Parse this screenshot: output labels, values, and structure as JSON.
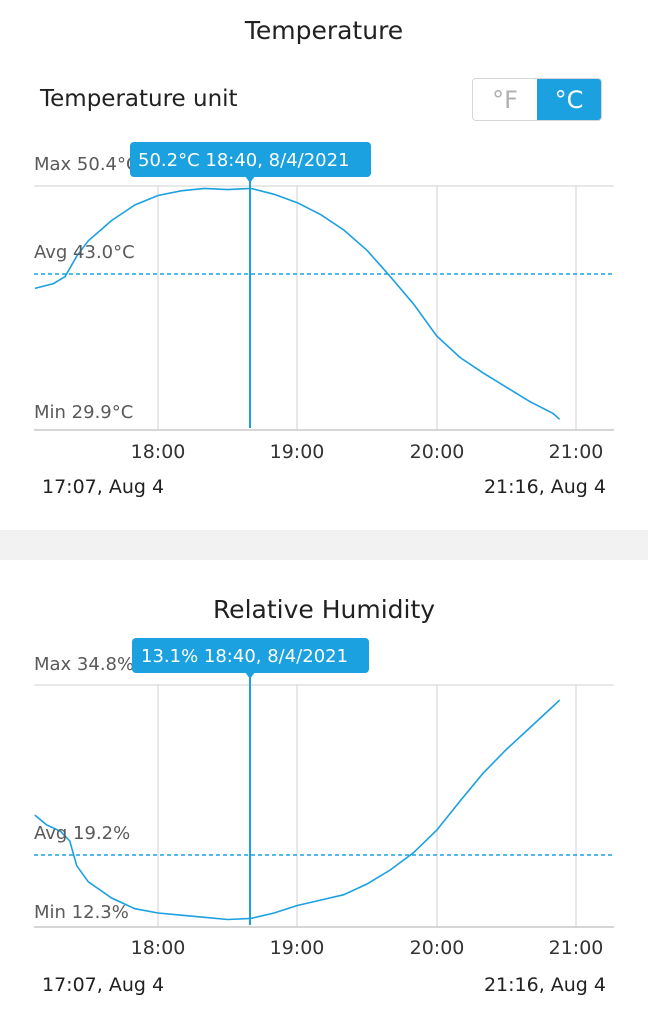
{
  "temperature": {
    "title": "Temperature",
    "unit_label": "Temperature unit",
    "unit_options": [
      "°F",
      "°C"
    ],
    "selected_unit": "°C",
    "max_label": "Max 50.4°C",
    "avg_label": "Avg 43.0°C",
    "min_label": "Min 29.9°C",
    "tooltip": "50.2°C 18:40,  8/4/2021",
    "range_start": "17:07,  Aug 4",
    "range_end": "21:16,  Aug 4"
  },
  "humidity": {
    "title": "Relative Humidity",
    "max_label": "Max 34.8%",
    "avg_label": "Avg 19.2%",
    "min_label": "Min 12.3%",
    "tooltip": "13.1% 18:40,  8/4/2021",
    "range_start": "17:07,  Aug 4",
    "range_end": "21:16,  Aug 4"
  },
  "colors": {
    "accent": "#1ba0e0",
    "grid": "#e0e0e0",
    "separator": "#f2f2f2"
  },
  "chart_data": [
    {
      "type": "line",
      "title": "Temperature",
      "x_ticks": [
        "18:00",
        "19:00",
        "20:00",
        "21:00"
      ],
      "x_range": [
        "17:07",
        "21:16"
      ],
      "y_range": [
        29.9,
        50.4
      ],
      "avg": 43.0,
      "cursor": {
        "time": "18:40",
        "value": 50.2
      },
      "series": [
        {
          "x": [
            "17:07",
            "17:15",
            "17:20",
            "17:25",
            "17:30",
            "17:40",
            "17:50",
            "18:00",
            "18:10",
            "18:20",
            "18:30",
            "18:40",
            "18:50",
            "19:00",
            "19:10",
            "19:20",
            "19:30",
            "19:40",
            "19:50",
            "20:00",
            "20:10",
            "20:20",
            "20:30",
            "20:40",
            "20:50",
            "20:53"
          ],
          "values": [
            41.8,
            42.2,
            42.8,
            44.5,
            45.8,
            47.5,
            48.8,
            49.6,
            50.0,
            50.2,
            50.1,
            50.2,
            49.7,
            49.0,
            48.0,
            46.7,
            45.0,
            42.8,
            40.5,
            37.8,
            36.0,
            34.7,
            33.5,
            32.3,
            31.3,
            30.8
          ]
        }
      ]
    },
    {
      "type": "line",
      "title": "Relative Humidity",
      "x_ticks": [
        "18:00",
        "19:00",
        "20:00",
        "21:00"
      ],
      "x_range": [
        "17:07",
        "21:16"
      ],
      "y_range": [
        12.3,
        34.8
      ],
      "avg": 19.2,
      "cursor": {
        "time": "18:40",
        "value": 13.1
      },
      "series": [
        {
          "x": [
            "17:07",
            "17:12",
            "17:18",
            "17:22",
            "17:25",
            "17:30",
            "17:40",
            "17:50",
            "18:00",
            "18:10",
            "18:20",
            "18:30",
            "18:40",
            "18:50",
            "19:00",
            "19:10",
            "19:20",
            "19:30",
            "19:40",
            "19:50",
            "20:00",
            "20:10",
            "20:20",
            "20:30",
            "20:40",
            "20:50",
            "20:53"
          ],
          "values": [
            22.7,
            21.8,
            21.2,
            20.3,
            18.0,
            16.5,
            15.0,
            14.0,
            13.6,
            13.4,
            13.2,
            13.0,
            13.1,
            13.6,
            14.3,
            14.8,
            15.3,
            16.3,
            17.6,
            19.2,
            21.3,
            24.0,
            26.6,
            28.8,
            30.8,
            32.8,
            33.4
          ]
        }
      ]
    }
  ]
}
